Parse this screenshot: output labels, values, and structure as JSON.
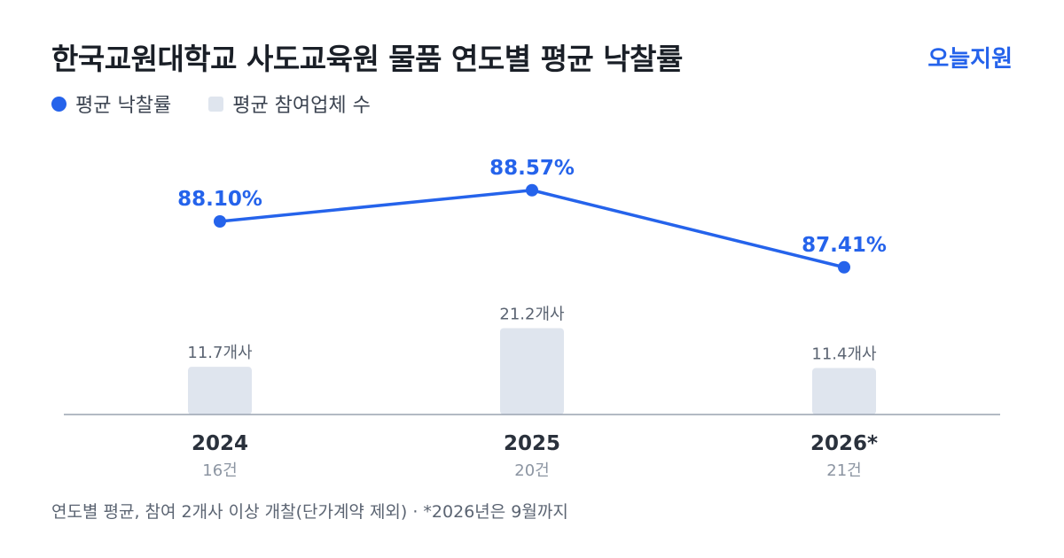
{
  "header": {
    "title": "한국교원대학교 사도교육원 물품 연도별 평균 낙찰률",
    "brand": "오늘지원"
  },
  "legend": {
    "rate_label": "평균 낙찰률",
    "count_label": "평균 참여업체 수"
  },
  "footnote": "연도별 평균, 참여 2개사 이상 개찰(단가계약 제외) · *2026년은 9월까지",
  "colors": {
    "line": "#2563eb",
    "bar": "#dfe5ee",
    "axis": "#9aa3b0"
  },
  "chart_data": {
    "type": "line+bar",
    "categories": [
      "2024",
      "2025",
      "2026*"
    ],
    "sublabels": [
      "16건",
      "20건",
      "21건"
    ],
    "series": [
      {
        "name": "평균 낙찰률",
        "type": "line",
        "values": [
          88.1,
          88.57,
          87.41
        ],
        "labels": [
          "88.10%",
          "88.57%",
          "87.41%"
        ]
      },
      {
        "name": "평균 참여업체 수",
        "type": "bar",
        "values": [
          11.7,
          21.2,
          11.4
        ],
        "labels": [
          "11.7개사",
          "21.2개사",
          "11.4개사"
        ]
      }
    ],
    "legend_position": "top-left",
    "grid": false
  }
}
